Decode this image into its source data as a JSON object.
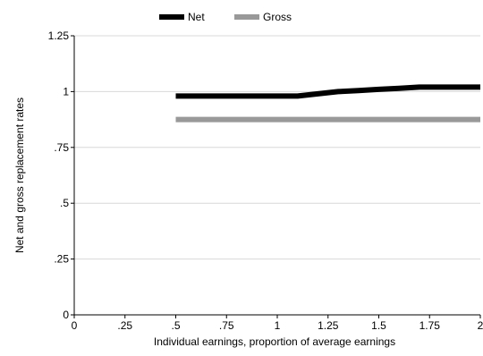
{
  "chart_data": {
    "type": "line",
    "xlabel": "Individual earnings, proportion of average earnings",
    "ylabel": "Net and gross replacement rates",
    "xlim": [
      0,
      2
    ],
    "ylim": [
      0,
      1.25
    ],
    "x_ticks": [
      "0",
      ".25",
      ".5",
      ".75",
      "1",
      "1.25",
      "1.5",
      "1.75",
      "2"
    ],
    "y_ticks": [
      "0",
      ".25",
      ".5",
      ".75",
      "1",
      "1.25"
    ],
    "grid": "horizontal",
    "legend_position": "top-center",
    "series": [
      {
        "name": "Net",
        "color": "#000000",
        "x": [
          0.5,
          0.6,
          0.7,
          0.8,
          0.9,
          1.0,
          1.1,
          1.2,
          1.3,
          1.4,
          1.5,
          1.6,
          1.7,
          1.8,
          1.9,
          2.0
        ],
        "y": [
          0.98,
          0.98,
          0.98,
          0.98,
          0.98,
          0.98,
          0.98,
          0.99,
          1.0,
          1.005,
          1.01,
          1.015,
          1.02,
          1.02,
          1.02,
          1.02
        ]
      },
      {
        "name": "Gross",
        "color": "#999999",
        "x": [
          0.5,
          2.0
        ],
        "y": [
          0.875,
          0.875
        ]
      }
    ]
  }
}
